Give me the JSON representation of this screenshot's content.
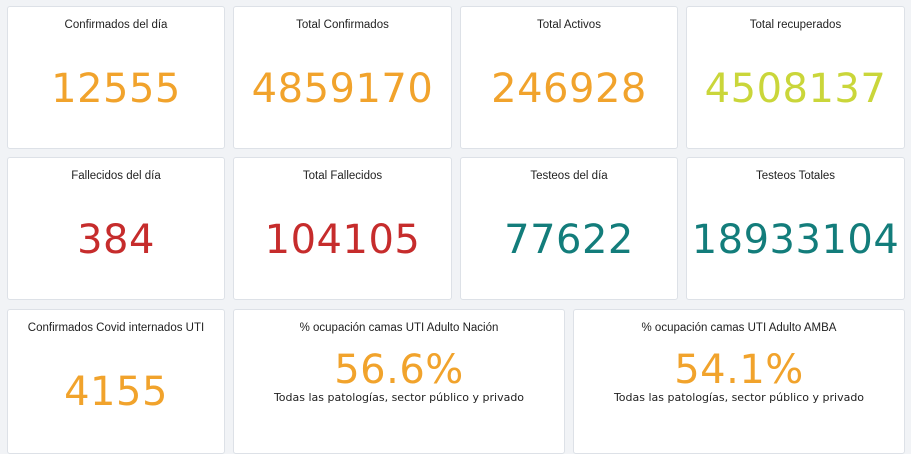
{
  "cards": [
    {
      "title": "Confirmados del día",
      "value": "12555",
      "color": "#f1a32c"
    },
    {
      "title": "Total Confirmados",
      "value": "4859170",
      "color": "#f1a32c"
    },
    {
      "title": "Total Activos",
      "value": "246928",
      "color": "#f1a32c"
    },
    {
      "title": "Total recuperados",
      "value": "4508137",
      "color": "#cad63a"
    },
    {
      "title": "Fallecidos del día",
      "value": "384",
      "color": "#c62c2c"
    },
    {
      "title": "Total Fallecidos",
      "value": "104105",
      "color": "#c62c2c"
    },
    {
      "title": "Testeos del día",
      "value": "77622",
      "color": "#137d7b"
    },
    {
      "title": "Testeos Totales",
      "value": "18933104",
      "color": "#137d7b"
    },
    {
      "title": "Confirmados Covid internados UTI",
      "value": "4155",
      "color": "#f1a32c"
    },
    {
      "title": "% ocupación camas UTI Adulto Nación",
      "value": "56.6%",
      "subtitle": "Todas las patologías, sector público y privado",
      "color": "#f1a32c"
    },
    {
      "title": "% ocupación camas UTI Adulto AMBA",
      "value": "54.1%",
      "subtitle": "Todas las patologías, sector público y privado",
      "color": "#f1a32c"
    }
  ]
}
